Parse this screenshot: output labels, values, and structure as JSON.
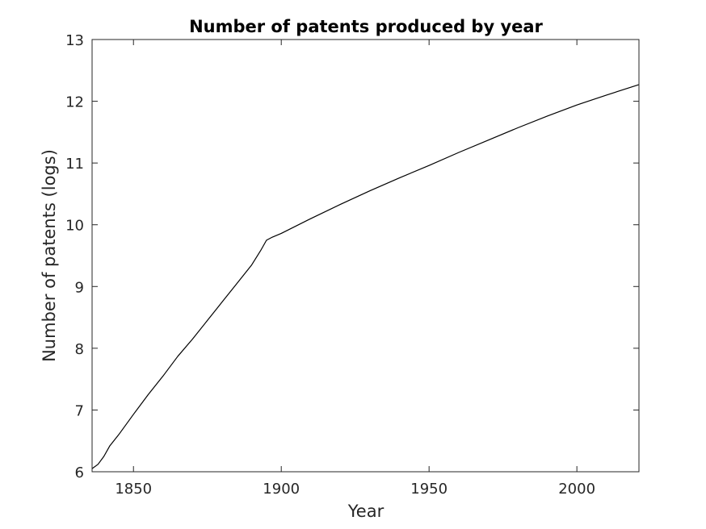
{
  "chart_data": {
    "type": "line",
    "title": "Number of patents produced by year",
    "xlabel": "Year",
    "ylabel": "Number of patents (logs)",
    "xlim": [
      1836,
      2021
    ],
    "ylim": [
      6,
      13
    ],
    "xticks": [
      1850,
      1900,
      1950,
      2000
    ],
    "yticks": [
      6,
      7,
      8,
      9,
      10,
      11,
      12,
      13
    ],
    "grid": false,
    "line_color": "#000000",
    "series": [
      {
        "x": [
          1836,
          1838,
          1840,
          1842,
          1845,
          1850,
          1855,
          1860,
          1865,
          1870,
          1875,
          1880,
          1885,
          1890,
          1893,
          1895,
          1897,
          1900,
          1910,
          1920,
          1930,
          1940,
          1950,
          1960,
          1970,
          1980,
          1990,
          2000,
          2010,
          2021
        ],
        "y": [
          6.05,
          6.12,
          6.25,
          6.42,
          6.6,
          6.93,
          7.25,
          7.55,
          7.87,
          8.15,
          8.45,
          8.75,
          9.05,
          9.35,
          9.58,
          9.75,
          9.8,
          9.86,
          10.1,
          10.33,
          10.55,
          10.76,
          10.96,
          11.17,
          11.37,
          11.57,
          11.76,
          11.94,
          12.1,
          12.27
        ]
      }
    ]
  }
}
